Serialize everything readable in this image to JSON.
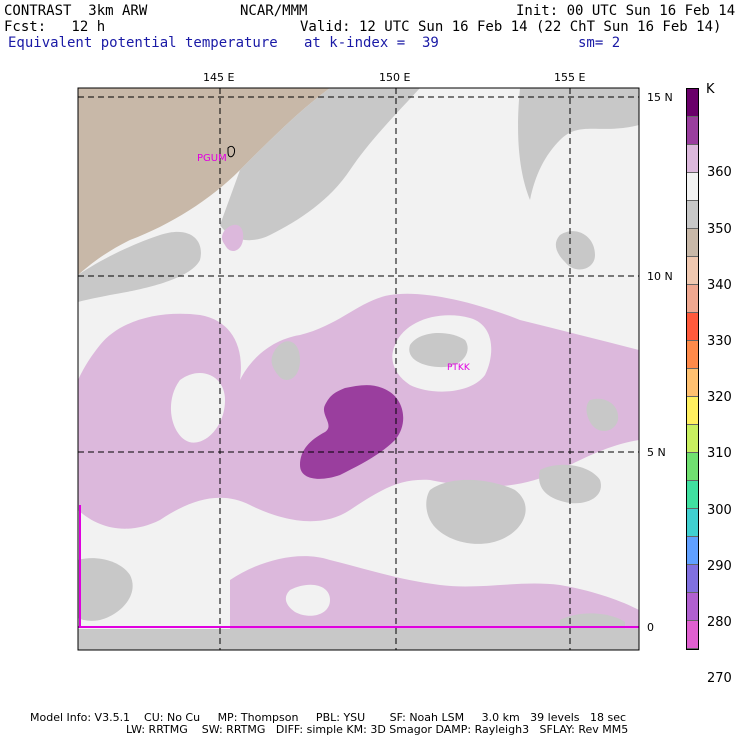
{
  "header": {
    "model": "CONTRAST  3km ARW",
    "org": "NCAR/MMM",
    "init": "Init: 00 UTC Sun 16 Feb 14",
    "fcst": "Fcst:   12 h",
    "valid": "Valid: 12 UTC Sun 16 Feb 14 (22 ChT Sun 16 Feb 14)",
    "field": "Equivalent potential temperature",
    "level": "at k-index =  39",
    "smooth": "sm= 2"
  },
  "map": {
    "lon_labels": [
      "145 E",
      "150 E",
      "155 E"
    ],
    "lat_labels": [
      "15 N",
      "10 N",
      "5 N",
      "0"
    ],
    "stations": [
      "PGUM",
      "PTKK"
    ]
  },
  "colorbar": {
    "unit": "K",
    "labels": [
      "360",
      "350",
      "340",
      "330",
      "320",
      "310",
      "300",
      "290",
      "280",
      "270"
    ],
    "colors": [
      "#6a006a",
      "#9a3e9e",
      "#dcb8dc",
      "#f2f2f2",
      "#c8c8c8",
      "#c8b8a8",
      "#f0c8b0",
      "#f0a890",
      "#ff5a3c",
      "#ff8a4a",
      "#ffc070",
      "#fff060",
      "#c8f060",
      "#70e070",
      "#40e0a0",
      "#40d0d0",
      "#60a0ff",
      "#8070e0",
      "#b060d0",
      "#e060d0"
    ]
  },
  "footer": {
    "line1": "Model Info: V3.5.1    CU: No Cu     MP: Thompson     PBL: YSU       SF: Noah LSM     3.0 km   39 levels   18 sec",
    "line2": "LW: RRTMG    SW: RRTMG   DIFF: simple KM: 3D Smagor DAMP: Rayleigh3   SFLAY: Rev MM5"
  }
}
